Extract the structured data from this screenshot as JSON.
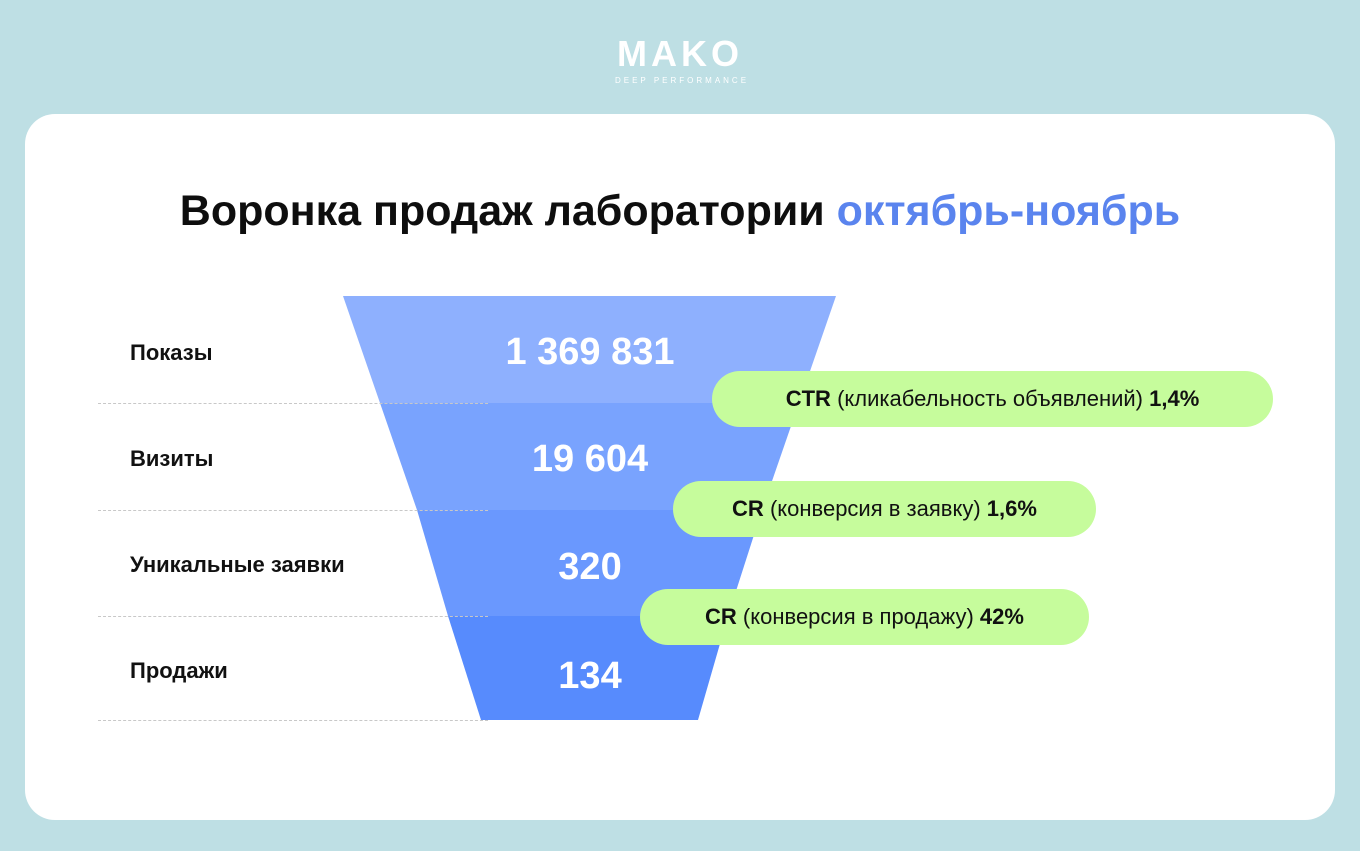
{
  "logo": {
    "name": "MAKO",
    "tagline": "DEEP PERFORMANCE"
  },
  "title": {
    "main": "Воронка продаж лаборатории",
    "accent": "октябрь-ноябрь"
  },
  "stages": [
    {
      "label": "Показы",
      "value": "1 369 831"
    },
    {
      "label": "Визиты",
      "value": "19 604"
    },
    {
      "label": "Уникальные заявки",
      "value": "320"
    },
    {
      "label": "Продажи",
      "value": "134"
    }
  ],
  "metrics": [
    {
      "abbr": "CTR",
      "desc": "(кликабельность объявлений)",
      "value": "1,4%"
    },
    {
      "abbr": "CR",
      "desc": "(конверсия в заявку)",
      "value": "1,6%"
    },
    {
      "abbr": "CR",
      "desc": "(конверсия в продажу)",
      "value": "42%"
    }
  ],
  "colors": {
    "background": "#bedfe4",
    "card": "#ffffff",
    "accent": "#5a84ee",
    "pill": "#c6fc9c",
    "funnel_stages": [
      "#8eb0fe",
      "#79a3fe",
      "#6a98fe",
      "#578bfd"
    ]
  }
}
